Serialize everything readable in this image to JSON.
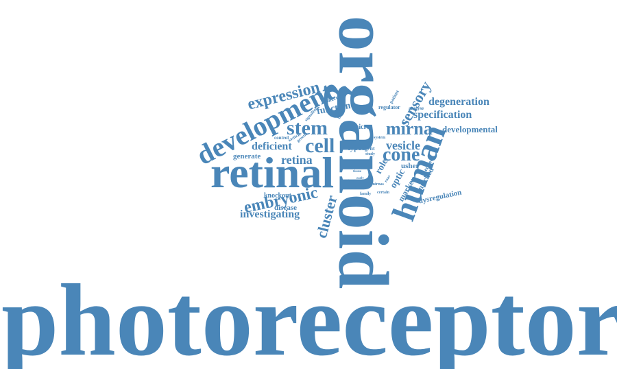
{
  "color": "#4a86b8",
  "words": {
    "photoreceptor": "photoreceptor",
    "organoid": "organoid",
    "retinal": "retinal",
    "human": "human",
    "development": "development",
    "expression": "expression",
    "stem": "stem",
    "cell": "cell",
    "cone": "cone",
    "mirna": "mirna",
    "embryonic": "embryonic",
    "investigating": "investigating",
    "cluster": "cluster",
    "sensory": "sensory",
    "degeneration": "degeneration",
    "specification": "specification",
    "developmental": "developmental",
    "vesicle": "vesicle",
    "retina": "retina",
    "deficient": "deficient",
    "generate": "generate",
    "function": "function",
    "molecular": "molecular",
    "micro": "micro",
    "regulator": "regulator",
    "patient": "patient",
    "analyse": "analyse",
    "type": "type",
    "agent": "agent",
    "role": "role",
    "usher": "usher",
    "opti": "optic",
    "marker": "marker",
    "enriched": "enriched",
    "edited": "edited",
    "dysregulation": "dysregulation",
    "knockout": "knockout",
    "disease": "disease",
    "control": "control",
    "switch": "switch",
    "genetic": "genetic",
    "signalling": "signalling",
    "line": "line",
    "system": "system",
    "study": "study",
    "default": "default",
    "family": "family",
    "certain": "certain",
    "rnas": "rnas",
    "tissue": "tissue",
    "mirnas": "mirnas",
    "fate": "fate",
    "early": "early",
    "loss": "loss"
  }
}
